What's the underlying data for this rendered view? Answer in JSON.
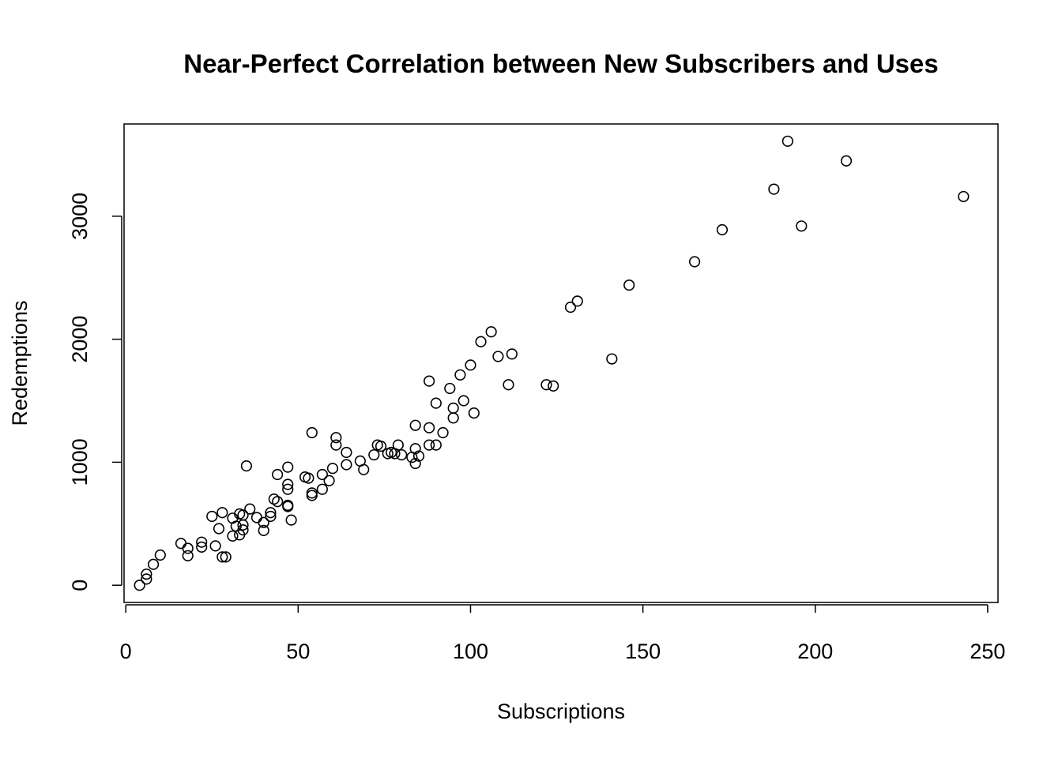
{
  "chart_data": {
    "type": "scatter",
    "title": "Near-Perfect Correlation between New Subscribers and Uses",
    "xlabel": "Subscriptions",
    "ylabel": "Redemptions",
    "xlim": [
      -0.5,
      253
    ],
    "ylim": [
      -140,
      3750
    ],
    "x_ticks": [
      0,
      50,
      100,
      150,
      200,
      250
    ],
    "y_ticks": [
      0,
      1000,
      2000,
      3000
    ],
    "grid": false,
    "marker": "open-circle",
    "color": "#000000",
    "points": [
      [
        4,
        0
      ],
      [
        6,
        50
      ],
      [
        6,
        90
      ],
      [
        8,
        170
      ],
      [
        10,
        245
      ],
      [
        16,
        340
      ],
      [
        18,
        300
      ],
      [
        18,
        240
      ],
      [
        22,
        350
      ],
      [
        22,
        310
      ],
      [
        25,
        560
      ],
      [
        26,
        320
      ],
      [
        27,
        460
      ],
      [
        28,
        590
      ],
      [
        28,
        230
      ],
      [
        29,
        230
      ],
      [
        31,
        545
      ],
      [
        31,
        400
      ],
      [
        32,
        480
      ],
      [
        33,
        580
      ],
      [
        33,
        410
      ],
      [
        34,
        570
      ],
      [
        34,
        490
      ],
      [
        34,
        450
      ],
      [
        35,
        970
      ],
      [
        36,
        620
      ],
      [
        38,
        550
      ],
      [
        40,
        510
      ],
      [
        40,
        445
      ],
      [
        42,
        590
      ],
      [
        42,
        560
      ],
      [
        43,
        700
      ],
      [
        44,
        680
      ],
      [
        44,
        900
      ],
      [
        47,
        960
      ],
      [
        47,
        820
      ],
      [
        47,
        780
      ],
      [
        47,
        650
      ],
      [
        47,
        640
      ],
      [
        48,
        530
      ],
      [
        52,
        880
      ],
      [
        53,
        870
      ],
      [
        54,
        1240
      ],
      [
        54,
        750
      ],
      [
        54,
        730
      ],
      [
        57,
        900
      ],
      [
        57,
        780
      ],
      [
        59,
        850
      ],
      [
        60,
        950
      ],
      [
        61,
        1200
      ],
      [
        61,
        1140
      ],
      [
        64,
        1080
      ],
      [
        64,
        980
      ],
      [
        68,
        1010
      ],
      [
        69,
        940
      ],
      [
        72,
        1060
      ],
      [
        73,
        1140
      ],
      [
        74,
        1130
      ],
      [
        76,
        1070
      ],
      [
        77,
        1080
      ],
      [
        78,
        1070
      ],
      [
        79,
        1140
      ],
      [
        80,
        1060
      ],
      [
        83,
        1040
      ],
      [
        84,
        1300
      ],
      [
        84,
        1110
      ],
      [
        84,
        990
      ],
      [
        85,
        1050
      ],
      [
        88,
        1660
      ],
      [
        88,
        1280
      ],
      [
        88,
        1140
      ],
      [
        90,
        1480
      ],
      [
        90,
        1140
      ],
      [
        92,
        1240
      ],
      [
        94,
        1600
      ],
      [
        95,
        1440
      ],
      [
        95,
        1360
      ],
      [
        97,
        1710
      ],
      [
        98,
        1500
      ],
      [
        100,
        1790
      ],
      [
        101,
        1400
      ],
      [
        103,
        1980
      ],
      [
        106,
        2060
      ],
      [
        108,
        1860
      ],
      [
        111,
        1630
      ],
      [
        112,
        1880
      ],
      [
        122,
        1630
      ],
      [
        124,
        1620
      ],
      [
        129,
        2260
      ],
      [
        131,
        2310
      ],
      [
        141,
        1840
      ],
      [
        146,
        2440
      ],
      [
        165,
        2630
      ],
      [
        173,
        2890
      ],
      [
        188,
        3220
      ],
      [
        192,
        3610
      ],
      [
        196,
        2920
      ],
      [
        209,
        3450
      ],
      [
        243,
        3160
      ]
    ]
  }
}
